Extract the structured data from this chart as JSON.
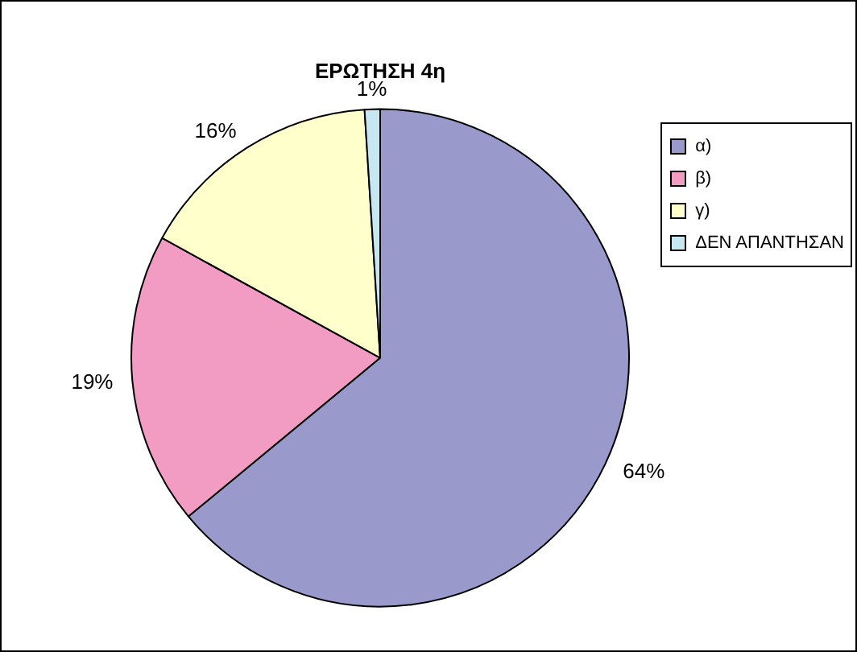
{
  "chart_data": {
    "type": "pie",
    "title": "ΕΡΩΤΗΣΗ 4η",
    "categories": [
      "α)",
      "β)",
      "γ)",
      "ΔΕΝ ΑΠΑΝΤΗΣΑΝ"
    ],
    "values": [
      64,
      19,
      16,
      1
    ],
    "colors": [
      "#9999cc",
      "#f29cc4",
      "#ffffcc",
      "#c6e6f2"
    ],
    "value_labels": [
      "64%",
      "19%",
      "16%",
      "1%"
    ],
    "legend": "top right"
  }
}
